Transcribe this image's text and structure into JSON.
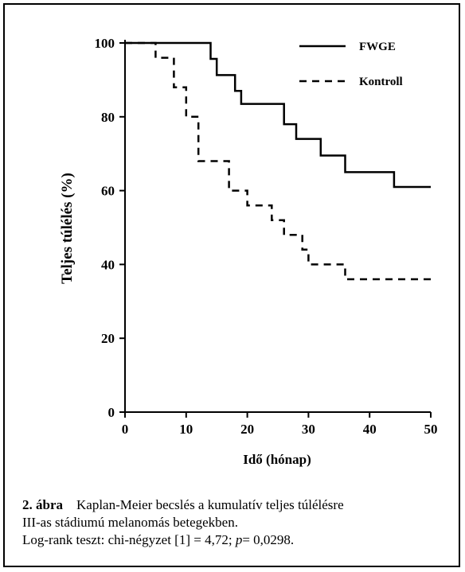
{
  "chart_data": {
    "type": "line",
    "step": true,
    "xlabel": "Idő (hónap)",
    "ylabel": "Teljes túlélés (%)",
    "xlim": [
      0,
      50
    ],
    "ylim": [
      0,
      100
    ],
    "xticks": [
      0,
      10,
      20,
      30,
      40,
      50
    ],
    "yticks": [
      0,
      20,
      40,
      60,
      80,
      100
    ],
    "grid": false,
    "legend_position": "top-right",
    "series": [
      {
        "name": "FWGE",
        "line_style": "solid",
        "color": "#000000",
        "points": [
          [
            0,
            100
          ],
          [
            14,
            100
          ],
          [
            14,
            95.7
          ],
          [
            15,
            95.7
          ],
          [
            15,
            91.3
          ],
          [
            18,
            91.3
          ],
          [
            18,
            87
          ],
          [
            19,
            87
          ],
          [
            19,
            83.5
          ],
          [
            26,
            83.5
          ],
          [
            26,
            78
          ],
          [
            28,
            78
          ],
          [
            28,
            74
          ],
          [
            32,
            74
          ],
          [
            32,
            69.5
          ],
          [
            36,
            69.5
          ],
          [
            36,
            65
          ],
          [
            44,
            65
          ],
          [
            44,
            61
          ],
          [
            50,
            61
          ]
        ]
      },
      {
        "name": "Kontroll",
        "line_style": "dashed",
        "color": "#000000",
        "points": [
          [
            0,
            100
          ],
          [
            5,
            100
          ],
          [
            5,
            96
          ],
          [
            8,
            96
          ],
          [
            8,
            88
          ],
          [
            10,
            88
          ],
          [
            10,
            80
          ],
          [
            12,
            80
          ],
          [
            12,
            68
          ],
          [
            17,
            68
          ],
          [
            17,
            60
          ],
          [
            20,
            60
          ],
          [
            20,
            56
          ],
          [
            24,
            56
          ],
          [
            24,
            52
          ],
          [
            26,
            52
          ],
          [
            26,
            48
          ],
          [
            29,
            48
          ],
          [
            29,
            44
          ],
          [
            30,
            44
          ],
          [
            30,
            40
          ],
          [
            36,
            40
          ],
          [
            36,
            36
          ],
          [
            50,
            36
          ]
        ]
      }
    ]
  },
  "caption": {
    "figure_label": "2. ábra",
    "line1": "Kaplan-Meier becslés a kumulatív teljes túlélésre",
    "line2": "III-as stádiumú melanomás betegekben.",
    "line3_pre": "Log-rank teszt: chi-négyzet [1] = 4,72; ",
    "line3_p": "p",
    "line3_post": "= 0,0298."
  }
}
